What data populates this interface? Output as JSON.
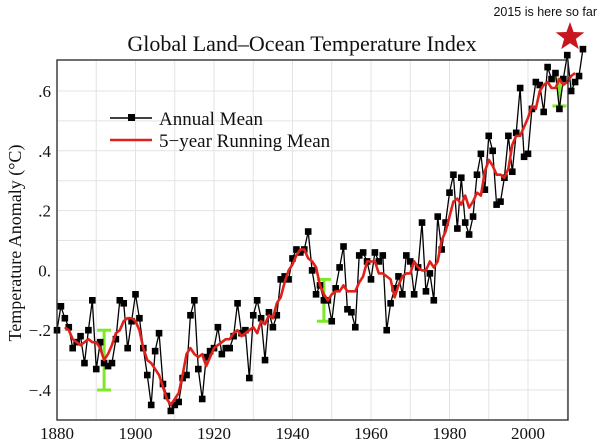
{
  "chart_data": {
    "type": "line",
    "title": "Global Land–Ocean Temperature Index",
    "xlabel": "",
    "ylabel": "Temperature Anomaly (°C)",
    "xlim": [
      1880,
      2015
    ],
    "ylim": [
      -0.5,
      0.7
    ],
    "grid": true,
    "x_ticks": [
      1880,
      1900,
      1920,
      1940,
      1960,
      1980,
      2000
    ],
    "x_tick_labels": [
      "1880",
      "1900",
      "1920",
      "1940",
      "1960",
      "1980",
      "2000"
    ],
    "y_ticks": [
      -0.4,
      -0.2,
      0.0,
      0.2,
      0.4,
      0.6
    ],
    "y_tick_labels": [
      "−.4",
      "−.2",
      "0.",
      ".2",
      ".4",
      ".6"
    ],
    "legend": {
      "placement": "top-left",
      "entries": [
        {
          "label": "Annual Mean",
          "color": "#000000",
          "marker": "square"
        },
        {
          "label": "5−year Running Mean",
          "color": "#e0201b",
          "marker": "none"
        }
      ]
    },
    "x": [
      1880,
      1881,
      1882,
      1883,
      1884,
      1885,
      1886,
      1887,
      1888,
      1889,
      1890,
      1891,
      1892,
      1893,
      1894,
      1895,
      1896,
      1897,
      1898,
      1899,
      1900,
      1901,
      1902,
      1903,
      1904,
      1905,
      1906,
      1907,
      1908,
      1909,
      1910,
      1911,
      1912,
      1913,
      1914,
      1915,
      1916,
      1917,
      1918,
      1919,
      1920,
      1921,
      1922,
      1923,
      1924,
      1925,
      1926,
      1927,
      1928,
      1929,
      1930,
      1931,
      1932,
      1933,
      1934,
      1935,
      1936,
      1937,
      1938,
      1939,
      1940,
      1941,
      1942,
      1943,
      1944,
      1945,
      1946,
      1947,
      1948,
      1949,
      1950,
      1951,
      1952,
      1953,
      1954,
      1955,
      1956,
      1957,
      1958,
      1959,
      1960,
      1961,
      1962,
      1963,
      1964,
      1965,
      1966,
      1967,
      1968,
      1969,
      1970,
      1971,
      1972,
      1973,
      1974,
      1975,
      1976,
      1977,
      1978,
      1979,
      1980,
      1981,
      1982,
      1983,
      1984,
      1985,
      1986,
      1987,
      1988,
      1989,
      1990,
      1991,
      1992,
      1993,
      1994,
      1995,
      1996,
      1997,
      1998,
      1999,
      2000,
      2001,
      2002,
      2003,
      2004,
      2005,
      2006,
      2007,
      2008,
      2009,
      2010,
      2011,
      2012,
      2013,
      2014
    ],
    "series": [
      {
        "name": "Annual Mean",
        "color": "#000000",
        "values": [
          -0.2,
          -0.12,
          -0.16,
          -0.19,
          -0.26,
          -0.24,
          -0.22,
          -0.31,
          -0.2,
          -0.1,
          -0.33,
          -0.24,
          -0.31,
          -0.32,
          -0.31,
          -0.23,
          -0.1,
          -0.11,
          -0.26,
          -0.17,
          -0.08,
          -0.16,
          -0.26,
          -0.35,
          -0.45,
          -0.27,
          -0.21,
          -0.38,
          -0.42,
          -0.47,
          -0.45,
          -0.44,
          -0.36,
          -0.35,
          -0.15,
          -0.1,
          -0.33,
          -0.43,
          -0.29,
          -0.27,
          -0.26,
          -0.19,
          -0.28,
          -0.26,
          -0.26,
          -0.22,
          -0.11,
          -0.21,
          -0.2,
          -0.36,
          -0.15,
          -0.1,
          -0.16,
          -0.3,
          -0.14,
          -0.19,
          -0.15,
          -0.03,
          -0.02,
          -0.03,
          0.04,
          0.07,
          0.06,
          0.07,
          0.13,
          0.0,
          -0.08,
          -0.05,
          -0.1,
          -0.1,
          -0.17,
          -0.06,
          0.01,
          0.08,
          -0.13,
          -0.14,
          -0.19,
          0.05,
          0.06,
          0.03,
          -0.03,
          0.06,
          0.03,
          0.05,
          -0.2,
          -0.11,
          -0.06,
          -0.02,
          -0.08,
          0.05,
          0.03,
          -0.08,
          0.01,
          0.16,
          -0.07,
          -0.01,
          -0.1,
          0.18,
          0.07,
          0.16,
          0.26,
          0.32,
          0.14,
          0.31,
          0.16,
          0.12,
          0.18,
          0.32,
          0.39,
          0.27,
          0.45,
          0.4,
          0.22,
          0.23,
          0.31,
          0.45,
          0.33,
          0.46,
          0.61,
          0.38,
          0.39,
          0.54,
          0.63,
          0.62,
          0.53,
          0.68,
          0.64,
          0.66,
          0.54,
          0.64,
          0.72,
          0.6,
          0.63,
          0.65,
          0.74
        ]
      },
      {
        "name": "5-year Running Mean",
        "color": "#e0201b",
        "values": [
          null,
          null,
          -0.19,
          -0.2,
          -0.23,
          -0.24,
          -0.25,
          -0.24,
          -0.23,
          -0.24,
          -0.24,
          -0.26,
          -0.3,
          -0.28,
          -0.25,
          -0.21,
          -0.2,
          -0.17,
          -0.16,
          -0.16,
          -0.17,
          -0.2,
          -0.26,
          -0.3,
          -0.31,
          -0.33,
          -0.35,
          -0.39,
          -0.43,
          -0.45,
          -0.43,
          -0.41,
          -0.35,
          -0.28,
          -0.26,
          -0.28,
          -0.29,
          -0.28,
          -0.32,
          -0.29,
          -0.26,
          -0.25,
          -0.24,
          -0.23,
          -0.23,
          -0.21,
          -0.2,
          -0.22,
          -0.21,
          -0.2,
          -0.19,
          -0.21,
          -0.17,
          -0.18,
          -0.15,
          -0.16,
          -0.11,
          -0.09,
          -0.04,
          0.0,
          0.02,
          0.05,
          0.07,
          0.07,
          0.04,
          0.03,
          0.01,
          -0.05,
          -0.08,
          -0.1,
          -0.08,
          -0.07,
          -0.07,
          -0.05,
          -0.07,
          -0.07,
          -0.07,
          -0.04,
          -0.02,
          0.03,
          0.03,
          0.03,
          -0.01,
          -0.01,
          -0.02,
          -0.03,
          -0.09,
          -0.05,
          -0.02,
          -0.01,
          -0.01,
          0.03,
          0.01,
          0.0,
          0.0,
          0.03,
          0.01,
          0.03,
          0.1,
          0.13,
          0.18,
          0.23,
          0.24,
          0.22,
          0.25,
          0.21,
          0.23,
          0.26,
          0.25,
          0.33,
          0.37,
          0.35,
          0.32,
          0.32,
          0.31,
          0.34,
          0.42,
          0.45,
          0.45,
          0.48,
          0.51,
          0.55,
          0.54,
          0.6,
          0.62,
          0.63,
          0.61,
          0.61,
          0.64,
          0.62,
          0.63,
          0.65,
          0.66,
          null,
          null
        ]
      }
    ],
    "uncertainty_bars": [
      {
        "x": 1892,
        "low": -0.4,
        "high": -0.2,
        "color": "#7ee82a"
      },
      {
        "x": 1948,
        "low": -0.17,
        "high": -0.03,
        "color": "#7ee82a"
      },
      {
        "x": 2008,
        "low": 0.55,
        "high": 0.64,
        "color": "#7ee82a"
      }
    ],
    "annotation": {
      "text": "2015 is here so far",
      "marker": "star",
      "color": "#c8161e",
      "x": 2015,
      "y": 0.85
    }
  }
}
